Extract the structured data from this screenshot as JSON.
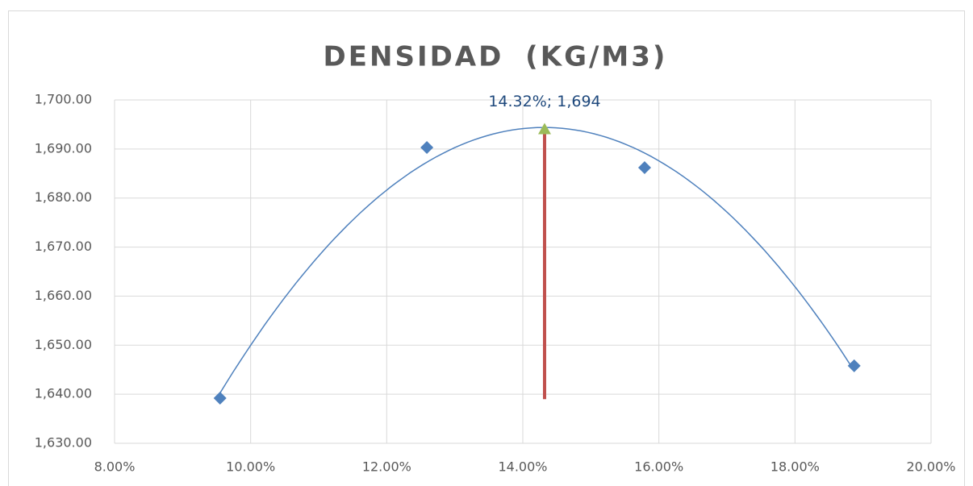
{
  "chart_data": {
    "type": "scatter",
    "title": "DENSIDAD (KG/M3)",
    "xlim": [
      8,
      20
    ],
    "xticks": [
      {
        "value": 8,
        "label": "8.00%"
      },
      {
        "value": 10,
        "label": "10.00%"
      },
      {
        "value": 12,
        "label": "12.00%"
      },
      {
        "value": 14,
        "label": "14.00%"
      },
      {
        "value": 16,
        "label": "16.00%"
      },
      {
        "value": 18,
        "label": "18.00%"
      },
      {
        "value": 20,
        "label": "20.00%"
      }
    ],
    "ylim": [
      1630,
      1700
    ],
    "yticks": [
      {
        "value": 1630,
        "label": "1,630.00"
      },
      {
        "value": 1640,
        "label": "1,640.00"
      },
      {
        "value": 1650,
        "label": "1,650.00"
      },
      {
        "value": 1660,
        "label": "1,660.00"
      },
      {
        "value": 1670,
        "label": "1,670.00"
      },
      {
        "value": 1680,
        "label": "1,680.00"
      },
      {
        "value": 1690,
        "label": "1,690.00"
      },
      {
        "value": 1700,
        "label": "1,700.00"
      }
    ],
    "grid": true,
    "series": [
      {
        "color": "#4f81bd",
        "marker": "diamond",
        "x": [
          9.55,
          12.59,
          15.79,
          18.87
        ],
        "values": [
          1639.2,
          1690.3,
          1686.2,
          1645.8
        ],
        "trendline": "polynomial",
        "trendline_order": 2
      },
      {
        "color": "#c0504d",
        "marker": "none",
        "line": true,
        "x": [
          14.32,
          14.32
        ],
        "values": [
          1694,
          1639
        ]
      },
      {
        "color": "#9bbb59",
        "marker": "triangle",
        "x": [
          14.32
        ],
        "values": [
          1694
        ],
        "value_labels": [
          "14.32%;  1,694"
        ]
      }
    ]
  }
}
